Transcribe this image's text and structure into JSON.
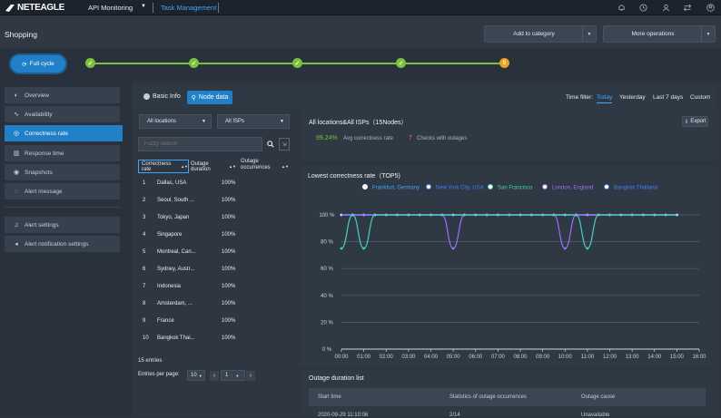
{
  "topbar": {
    "logo": "NETEAGLE",
    "menu1": "API Monitoring",
    "menu1_caret": "▼",
    "menu2": "Task Management"
  },
  "page": {
    "title": "Shopping",
    "add_to_category": "Add to category",
    "more_operations": "More operations"
  },
  "cycle": {
    "label": "Full cycle",
    "step5": "5"
  },
  "sidebar": {
    "items": [
      "Overview",
      "Availability",
      "Correctness rate",
      "Response time",
      "Snapshots",
      "Alert message"
    ],
    "items2": [
      "Alert settings",
      "Alert notification settings"
    ]
  },
  "tabs": {
    "basic": "Basic Info",
    "node": "Node data"
  },
  "filter": {
    "label": "Time filter:",
    "today": "Today",
    "yesterday": "Yesterday",
    "last7": "Last 7 days",
    "custom": "Custom"
  },
  "left": {
    "locations": "All locations",
    "isps": "All ISPs",
    "search_placeholder": "Fuzzy search",
    "col1": "Correctness rate",
    "col2": "Outage duration",
    "col3": "Outage occurrences",
    "rows": [
      [
        "1",
        "Dallas, USA",
        "100%"
      ],
      [
        "2",
        "Seoul, South ...",
        "100%"
      ],
      [
        "3",
        "Tokyo, Japan",
        "100%"
      ],
      [
        "4",
        "Singapore",
        "100%"
      ],
      [
        "5",
        "Montreal, Can...",
        "100%"
      ],
      [
        "6",
        "Sydney, Austr...",
        "100%"
      ],
      [
        "7",
        "Indonesia",
        "100%"
      ],
      [
        "8",
        "Amsterdam, ...",
        "100%"
      ],
      [
        "9",
        "France",
        "100%"
      ],
      [
        "10",
        "Bangkok Thai...",
        "100%"
      ]
    ],
    "entries": "15 entries",
    "per_page_label": "Entries per page:",
    "per_page": "10",
    "page": "1"
  },
  "right": {
    "title": "All locations&All ISPs（15Nodes）",
    "export": "Export",
    "avg_value": "99.24%",
    "avg_label": "Avg correctness rate",
    "checks_value": "7",
    "checks_label": "Checks with outages",
    "chart_title": "Lowest correctness rate（TOP5)",
    "outage_title": "Outage duration list",
    "oh1": "Start time",
    "oh2": "Statistics of outage occurrences",
    "oh3": "Outage cause",
    "orow1": "2020-09-29 11:10:06",
    "orow2": "2/14",
    "orow3": "Unavailable"
  },
  "chart_data": {
    "type": "line",
    "x": [
      "00:00",
      "00:30",
      "01:00",
      "01:30",
      "02:00",
      "02:30",
      "03:00",
      "03:30",
      "04:00",
      "04:30",
      "05:00",
      "05:30",
      "06:00",
      "06:30",
      "07:00",
      "07:30",
      "08:00",
      "08:30",
      "09:00",
      "09:30",
      "10:00",
      "10:30",
      "11:00",
      "11:30",
      "12:00",
      "12:30",
      "13:00",
      "13:30",
      "14:00",
      "14:30",
      "15:00"
    ],
    "ylim": [
      0,
      100
    ],
    "yticks": [
      "0 %",
      "20 %",
      "40 %",
      "60 %",
      "80 %",
      "100 %"
    ],
    "xticks": [
      "00:00",
      "01:00",
      "02:00",
      "03:00",
      "04:00",
      "05:00",
      "06:00",
      "07:00",
      "08:00",
      "09:00",
      "10:00",
      "11:00",
      "12:00",
      "13:00",
      "14:00",
      "15:00",
      "16:00"
    ],
    "series": [
      {
        "name": "Frankfurt, Germany",
        "color": "#ffffff",
        "values": [
          100,
          100,
          100,
          100,
          100,
          100,
          100,
          100,
          100,
          100,
          100,
          100,
          100,
          100,
          100,
          100,
          100,
          100,
          100,
          100,
          100,
          100,
          100,
          100,
          100,
          100,
          100,
          100,
          100,
          100,
          100
        ]
      },
      {
        "name": "New York City, USA",
        "color": "#3f7fff",
        "values": [
          100,
          100,
          100,
          100,
          100,
          100,
          100,
          100,
          100,
          100,
          100,
          100,
          100,
          100,
          100,
          100,
          100,
          100,
          100,
          100,
          100,
          100,
          100,
          100,
          100,
          100,
          100,
          100,
          100,
          100,
          100
        ]
      },
      {
        "name": "San Francisco",
        "color": "#3fd3b8",
        "values": [
          75,
          100,
          75,
          100,
          100,
          100,
          100,
          100,
          100,
          100,
          100,
          100,
          100,
          100,
          100,
          100,
          100,
          100,
          100,
          100,
          100,
          100,
          75,
          100,
          100,
          100,
          100,
          100,
          100,
          100,
          100
        ]
      },
      {
        "name": "London, England",
        "color": "#a06bff",
        "values": [
          100,
          100,
          100,
          100,
          100,
          100,
          100,
          100,
          100,
          100,
          75,
          100,
          100,
          100,
          100,
          100,
          100,
          100,
          100,
          100,
          75,
          100,
          100,
          100,
          100,
          100,
          100,
          100,
          100,
          100,
          100
        ]
      },
      {
        "name": "Bangkok Thailand",
        "color": "#3f7fff",
        "values": [
          100,
          100,
          100,
          100,
          100,
          100,
          100,
          100,
          100,
          100,
          100,
          100,
          100,
          100,
          100,
          100,
          100,
          100,
          100,
          100,
          100,
          100,
          100,
          100,
          100,
          100,
          100,
          100,
          100,
          100,
          100
        ]
      }
    ]
  }
}
